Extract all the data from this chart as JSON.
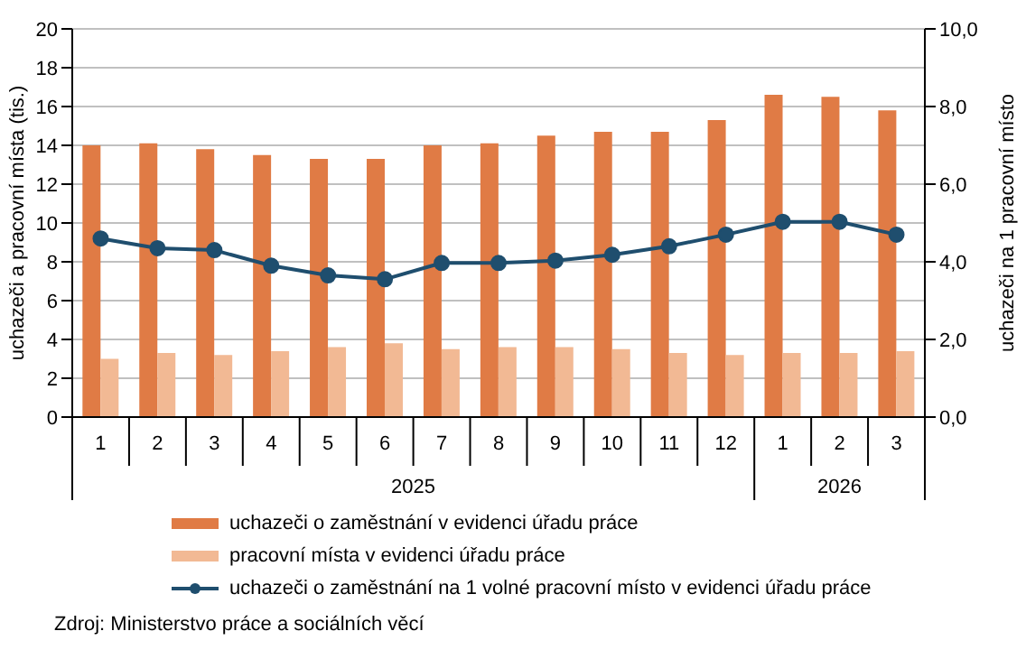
{
  "chart_data": {
    "type": "bar",
    "categories": [
      "1",
      "2",
      "3",
      "4",
      "5",
      "6",
      "7",
      "8",
      "9",
      "10",
      "11",
      "12",
      "1",
      "2",
      "3"
    ],
    "series": [
      {
        "name": "uchazeči o zaměstnání v evidenci úřadu práce",
        "color": "#e07b45",
        "values": [
          14.0,
          14.1,
          13.8,
          13.5,
          13.3,
          13.3,
          14.0,
          14.1,
          14.5,
          14.7,
          14.7,
          15.3,
          16.6,
          16.5,
          15.8
        ]
      },
      {
        "name": "pracovní místa v evidenci úřadu práce",
        "color": "#f2b994",
        "values": [
          3.0,
          3.3,
          3.2,
          3.4,
          3.6,
          3.8,
          3.5,
          3.6,
          3.6,
          3.5,
          3.3,
          3.2,
          3.3,
          3.3,
          3.4
        ]
      },
      {
        "name": "uchazeči o zaměstnání na 1 volné pracovní místo v evidenci úřadu práce",
        "type": "line",
        "axis": "y2",
        "color": "#1f4e6e",
        "values": [
          4.6,
          4.35,
          4.3,
          3.9,
          3.65,
          3.55,
          3.97,
          3.97,
          4.03,
          4.18,
          4.4,
          4.7,
          5.03,
          5.03,
          4.7
        ]
      }
    ],
    "ylabel": "uchazeči a pracovní místa (tis.)",
    "y2label": "uchazeči na 1 pracovní místo",
    "ylim": [
      0,
      20
    ],
    "yticks": [
      0,
      2,
      4,
      6,
      8,
      10,
      12,
      14,
      16,
      18,
      20
    ],
    "y2lim": [
      0,
      10
    ],
    "y2ticks": [
      {
        "value": 0,
        "label": "0,0"
      },
      {
        "value": 2,
        "label": "2,0"
      },
      {
        "value": 4,
        "label": "4,0"
      },
      {
        "value": 6,
        "label": "6,0"
      },
      {
        "value": 8,
        "label": "8,0"
      },
      {
        "value": 10,
        "label": "10,0"
      }
    ],
    "grid": "y",
    "legend": "bottom",
    "marker": "circle",
    "line_style": "solid",
    "annotations": [
      "2025",
      "2026",
      "Zdroj: Ministerstvo práce a sociálních věcí"
    ]
  }
}
